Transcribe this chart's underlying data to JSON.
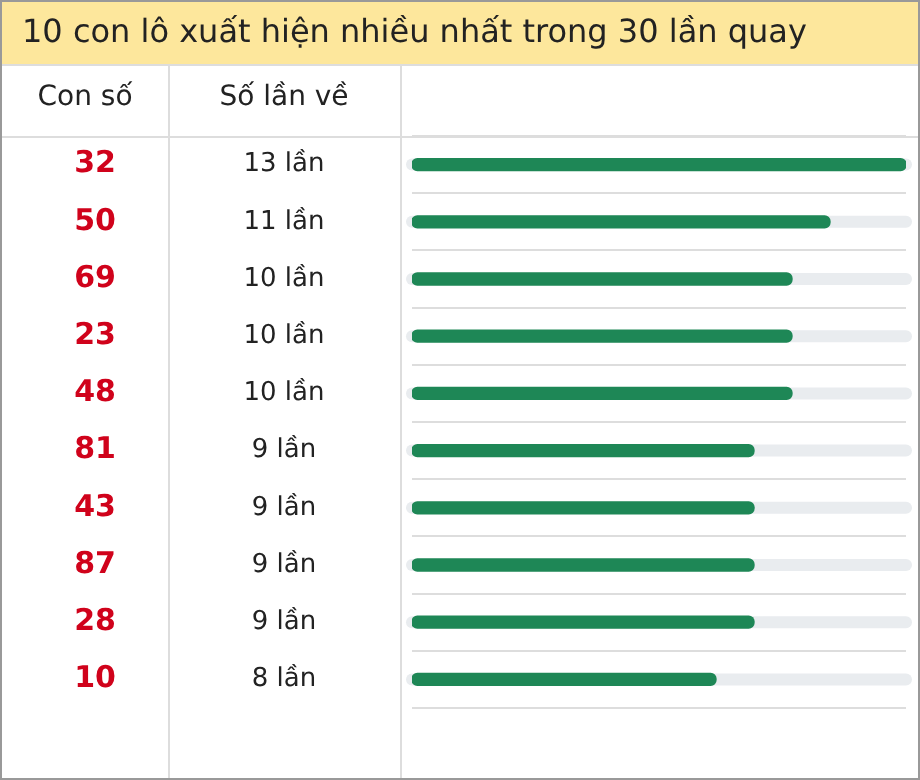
{
  "chart_data": {
    "type": "bar",
    "orientation": "horizontal",
    "title": "10 con lô xuất hiện nhiều nhất trong 30 lần quay",
    "annotations": [
      "Con số",
      "Số lần về"
    ],
    "categories": [
      "32",
      "50",
      "69",
      "23",
      "48",
      "81",
      "43",
      "87",
      "28",
      "10"
    ],
    "values": [
      13,
      11,
      10,
      10,
      10,
      9,
      9,
      9,
      9,
      8
    ],
    "value_labels": [
      "13 lần",
      "11 lần",
      "10 lần",
      "10 lần",
      "10 lần",
      "9 lần",
      "9 lần",
      "9 lần",
      "9 lần",
      "8 lần"
    ],
    "color": "#1e8756",
    "xlim": [
      0,
      13
    ],
    "grid": "y",
    "legend": false
  }
}
